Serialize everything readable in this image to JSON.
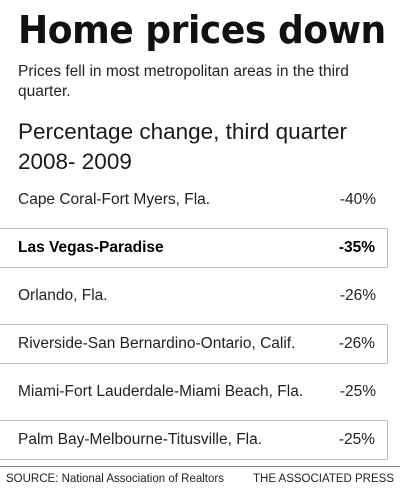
{
  "chart_data": {
    "type": "table",
    "title": "Home prices down",
    "subtitle": "Prices fell in most metropolitan areas in the third quarter.",
    "section_title": "Percentage change, third quarter 2008- 2009",
    "rows": [
      {
        "label": "Cape Coral-Fort Myers, Fla.",
        "value": "-40%"
      },
      {
        "label": "Las Vegas-Paradise",
        "value": "-35%"
      },
      {
        "label": "Orlando, Fla.",
        "value": "-26%"
      },
      {
        "label": "Riverside-San Bernardino-Ontario, Calif.",
        "value": "-26%"
      },
      {
        "label": "Miami-Fort Lauderdale-Miami Beach, Fla.",
        "value": "-25%"
      },
      {
        "label": "Palm Bay-Melbourne-Titusville, Fla.",
        "value": "-25%"
      }
    ],
    "highlighted_row": 1,
    "source": "SOURCE: National Association of Realtors",
    "credit": "THE ASSOCIATED PRESS"
  }
}
